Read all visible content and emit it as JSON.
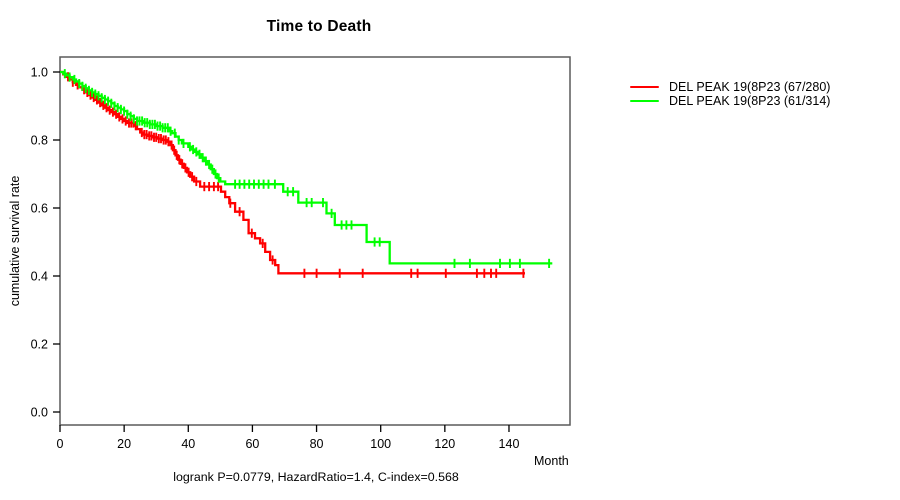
{
  "title": "Time to Death",
  "chart_data": {
    "type": "line",
    "subtype": "kaplan-meier-step",
    "title": "Time to Death",
    "xlabel": "Month",
    "ylabel": "cumulative survival rate",
    "caption": "logrank P=0.0779, HazardRatio=1.4, C-index=0.568",
    "x_ticks": [
      0,
      20,
      40,
      60,
      80,
      100,
      120,
      140
    ],
    "y_ticks": [
      0.0,
      0.2,
      0.4,
      0.6,
      0.8,
      1.0
    ],
    "y_tick_labels": [
      "0.0",
      "0.2",
      "0.4",
      "0.6",
      "0.8",
      "1.0"
    ],
    "xlim": [
      0,
      159
    ],
    "ylim": [
      0,
      1.04
    ],
    "grid": false,
    "legend_position": "right-outside",
    "box_color": "#5a5a5a",
    "series": [
      {
        "name": "red-group",
        "label": "DEL PEAK 19(8P23 (67/280)",
        "color": "#ff0000",
        "events_total": "67/280",
        "end_month": 145,
        "steps": [
          [
            0,
            1.0
          ],
          [
            1,
            0.993
          ],
          [
            2,
            0.986
          ],
          [
            3,
            0.978
          ],
          [
            4,
            0.97
          ],
          [
            5,
            0.962
          ],
          [
            6,
            0.955
          ],
          [
            7,
            0.948
          ],
          [
            8,
            0.94
          ],
          [
            9,
            0.932
          ],
          [
            10,
            0.925
          ],
          [
            11,
            0.918
          ],
          [
            12,
            0.91
          ],
          [
            13,
            0.902
          ],
          [
            14,
            0.895
          ],
          [
            15,
            0.888
          ],
          [
            16,
            0.882
          ],
          [
            17,
            0.876
          ],
          [
            18,
            0.868
          ],
          [
            19,
            0.862
          ],
          [
            20,
            0.856
          ],
          [
            21,
            0.85
          ],
          [
            23,
            0.842
          ],
          [
            24,
            0.832
          ],
          [
            25,
            0.822
          ],
          [
            26,
            0.816
          ],
          [
            27.5,
            0.812
          ],
          [
            29,
            0.808
          ],
          [
            30.5,
            0.804
          ],
          [
            32,
            0.8
          ],
          [
            33.5,
            0.795
          ],
          [
            34.4,
            0.785
          ],
          [
            35.2,
            0.77
          ],
          [
            36,
            0.755
          ],
          [
            36.8,
            0.742
          ],
          [
            37.6,
            0.73
          ],
          [
            38.6,
            0.718
          ],
          [
            39.6,
            0.705
          ],
          [
            40.6,
            0.692
          ],
          [
            41.8,
            0.678
          ],
          [
            43.7,
            0.663
          ],
          [
            50.2,
            0.648
          ],
          [
            51.5,
            0.632
          ],
          [
            52.8,
            0.614
          ],
          [
            54.6,
            0.589
          ],
          [
            57.2,
            0.565
          ],
          [
            58.8,
            0.526
          ],
          [
            60.8,
            0.511
          ],
          [
            62.4,
            0.496
          ],
          [
            64,
            0.471
          ],
          [
            65.5,
            0.447
          ],
          [
            67.1,
            0.432
          ],
          [
            68.1,
            0.408
          ]
        ],
        "censors": [
          2.5,
          4,
          5.5,
          7.5,
          8.5,
          9.5,
          10.5,
          11.5,
          12.5,
          13.5,
          14.5,
          15.5,
          16.5,
          17.5,
          18.5,
          19.5,
          20.5,
          21.5,
          22.2,
          22.9,
          23.6,
          25.5,
          26.3,
          27,
          27.8,
          28.5,
          29.3,
          30,
          30.8,
          31.5,
          32.3,
          33,
          33.8,
          34.8,
          35.6,
          36.4,
          37.2,
          38.1,
          39.1,
          40.1,
          41.2,
          42.5,
          45,
          46.5,
          48,
          49.3,
          53.1,
          56,
          59.8,
          63.2,
          66.3,
          76.2,
          80,
          87.2,
          94.4,
          109.5,
          111.5,
          120.3,
          130,
          132.3,
          134.4,
          136,
          144.5
        ]
      },
      {
        "name": "green-group",
        "label": "DEL PEAK 19(8P23 (61/314)",
        "color": "#00ff00",
        "events_total": "61/314",
        "end_month": 153.5,
        "steps": [
          [
            0,
            1.0
          ],
          [
            1,
            0.995
          ],
          [
            2,
            0.99
          ],
          [
            3,
            0.985
          ],
          [
            4,
            0.978
          ],
          [
            5,
            0.972
          ],
          [
            6,
            0.966
          ],
          [
            7,
            0.958
          ],
          [
            8,
            0.952
          ],
          [
            9,
            0.946
          ],
          [
            10,
            0.94
          ],
          [
            11,
            0.935
          ],
          [
            12,
            0.93
          ],
          [
            13,
            0.924
          ],
          [
            14,
            0.919
          ],
          [
            15,
            0.914
          ],
          [
            16,
            0.908
          ],
          [
            17,
            0.9
          ],
          [
            18,
            0.895
          ],
          [
            19,
            0.89
          ],
          [
            20,
            0.885
          ],
          [
            21,
            0.876
          ],
          [
            22,
            0.87
          ],
          [
            23,
            0.862
          ],
          [
            24,
            0.856
          ],
          [
            26,
            0.851
          ],
          [
            28,
            0.846
          ],
          [
            30,
            0.841
          ],
          [
            32,
            0.836
          ],
          [
            34,
            0.826
          ],
          [
            35,
            0.82
          ],
          [
            36,
            0.81
          ],
          [
            37,
            0.8
          ],
          [
            38,
            0.79
          ],
          [
            40,
            0.78
          ],
          [
            41,
            0.772
          ],
          [
            42,
            0.765
          ],
          [
            43,
            0.758
          ],
          [
            44,
            0.748
          ],
          [
            45,
            0.738
          ],
          [
            46,
            0.728
          ],
          [
            47,
            0.714
          ],
          [
            48,
            0.7
          ],
          [
            49,
            0.688
          ],
          [
            50,
            0.678
          ],
          [
            51.5,
            0.67
          ],
          [
            69.6,
            0.648
          ],
          [
            74.3,
            0.616
          ],
          [
            83.1,
            0.584
          ],
          [
            85.7,
            0.55
          ],
          [
            95.6,
            0.5
          ],
          [
            102.8,
            0.437
          ]
        ],
        "censors": [
          1.5,
          3,
          4.5,
          6,
          7,
          8,
          9,
          10,
          11,
          12,
          13,
          14,
          15,
          16,
          17,
          18,
          19,
          20,
          21,
          22,
          23,
          24,
          24.8,
          25.6,
          26.4,
          27.2,
          28,
          28.8,
          29.6,
          30.4,
          31.2,
          32,
          32.8,
          33.6,
          34.5,
          35.8,
          37,
          38.5,
          40.5,
          41.5,
          42.5,
          43.5,
          44.5,
          45.5,
          46.5,
          47.5,
          48.5,
          49.5,
          54.6,
          56,
          57.5,
          59,
          60.5,
          62,
          63.5,
          65,
          67,
          71,
          72.7,
          76.9,
          78.5,
          82,
          84.7,
          87.8,
          89.3,
          90.9,
          98.1,
          99.7,
          123,
          127.8,
          137.2,
          140.3,
          143.4,
          152.5
        ]
      }
    ]
  }
}
